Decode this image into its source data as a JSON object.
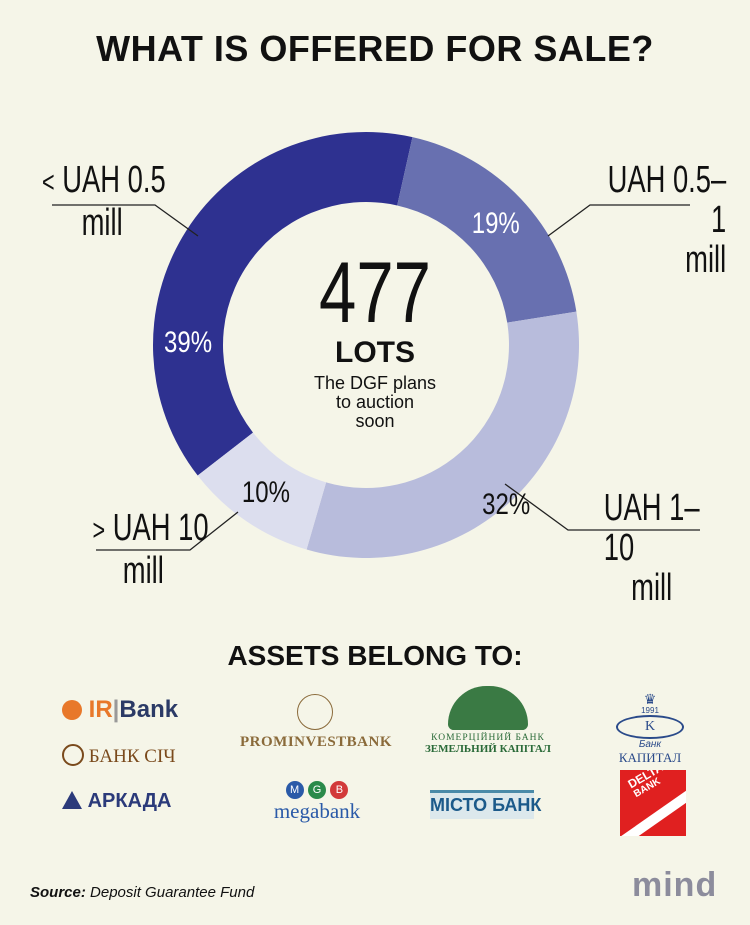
{
  "title": "WHAT IS OFFERED FOR SALE?",
  "center": {
    "count": "477",
    "unit": "LOTS",
    "desc_lines": [
      "The DGF plans",
      "to auction",
      "soon"
    ]
  },
  "chart_data": {
    "type": "pie",
    "donut": true,
    "slices": [
      {
        "label": "< UAH 0.5 mill",
        "value": 39,
        "display": "39%",
        "color": "#2e3190"
      },
      {
        "label": "UAH 0.5–1 mill",
        "value": 19,
        "display": "19%",
        "color": "#6870b0"
      },
      {
        "label": "UAH 1–10 mill",
        "value": 32,
        "display": "32%",
        "color": "#b8bcdc"
      },
      {
        "label": "> UAH 10 mill",
        "value": 10,
        "display": "10%",
        "color": "#dcdeee"
      }
    ]
  },
  "categories": {
    "a": {
      "sym": "<",
      "l1": "UAH 0.5",
      "l2": "mill"
    },
    "b": {
      "l1": "UAH 0.5–1",
      "l2": "mill"
    },
    "c": {
      "l1": "UAH 1–10",
      "l2": "mill"
    },
    "d": {
      "sym": ">",
      "l1": "UAH 10",
      "l2": "mill"
    }
  },
  "assets_heading": "ASSETS BELONG TO:",
  "logos": {
    "ir_bank": {
      "left": "IR",
      "right": "Bank"
    },
    "bank_sich": "БАНК СІЧ",
    "arkada": "АРКАДА",
    "prominvest": "PROMINVESTBANK",
    "megabank_letters": [
      "M",
      "G",
      "B"
    ],
    "megabank": "megabank",
    "zemelny_l1": "КОМЕРЦІЙНИЙ БАНК",
    "zemelny_l2": "ЗЕМЕЛЬНИЙ КАПІТАЛ",
    "misto": "МІСТО БАНК",
    "kapital_year": "1991",
    "kapital_l1": "Банк",
    "kapital_l2": "КАПИТАЛ",
    "delta_l1": "DELTA",
    "delta_l2": "BANK"
  },
  "source": {
    "label": "Source:",
    "text": "Deposit Guarantee Fund"
  },
  "brand": "mind"
}
